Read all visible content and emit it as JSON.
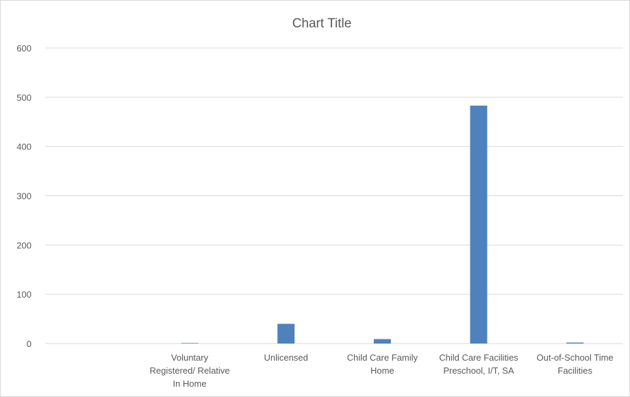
{
  "chart_data": {
    "type": "bar",
    "title": "Chart Title",
    "xlabel": "",
    "ylabel": "",
    "ylim": [
      0,
      600
    ],
    "yticks": [
      "0",
      "100",
      "200",
      "300",
      "400",
      "500",
      "600"
    ],
    "grid": true,
    "categories": [
      "",
      "Voluntary Registered/ Relative In Home",
      "Unlicensed",
      "Child Care Family Home",
      "Child Care Facilities Preschool, I/T, SA",
      "Out-of-School Time Facilities"
    ],
    "category_label_lines": [
      [],
      [
        "Voluntary",
        "Registered/ Relative",
        "In Home"
      ],
      [
        "Unlicensed"
      ],
      [
        "Child Care Family",
        "Home"
      ],
      [
        "Child Care Facilities",
        "Preschool, I/T, SA"
      ],
      [
        "Out-of-School Time",
        "Facilities"
      ]
    ],
    "values": [
      0,
      1,
      40,
      9,
      483,
      2
    ],
    "color": "#4f81bd"
  }
}
